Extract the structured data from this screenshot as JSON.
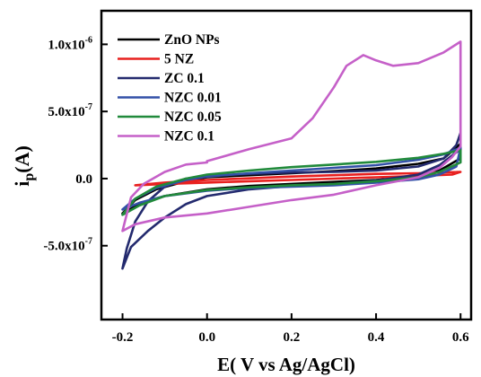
{
  "chart_data": {
    "type": "line",
    "xlabel": "E( V vs Ag/AgCl)",
    "ylabel_main": "i",
    "ylabel_sub": "p",
    "ylabel_tail": "(A)",
    "xlim": [
      -0.25,
      0.625
    ],
    "ylim": [
      -1.05e-06,
      1.25e-06
    ],
    "x_ticks": [
      {
        "value": -0.2,
        "label": "-0.2"
      },
      {
        "value": 0.0,
        "label": "0.0"
      },
      {
        "value": 0.2,
        "label": "0.2"
      },
      {
        "value": 0.4,
        "label": "0.4"
      },
      {
        "value": 0.6,
        "label": "0.6"
      }
    ],
    "y_ticks": [
      {
        "value": -5e-07,
        "base": "-5.0x10",
        "exp": "-7"
      },
      {
        "value": 0,
        "base": "0.0",
        "exp": ""
      },
      {
        "value": 5e-07,
        "base": "5.0x10",
        "exp": "-7"
      },
      {
        "value": 1e-06,
        "base": "1.0x10",
        "exp": "-6"
      }
    ],
    "legend_position": "top-left",
    "series": [
      {
        "name": "ZnO NPs",
        "color": "#000000",
        "points": [
          [
            -0.2,
            -2.6e-07
          ],
          [
            -0.17,
            -1.6e-07
          ],
          [
            -0.12,
            -8e-08
          ],
          [
            -0.05,
            -2e-08
          ],
          [
            0.0,
            1e-08
          ],
          [
            0.1,
            2.5e-08
          ],
          [
            0.2,
            4e-08
          ],
          [
            0.3,
            5.5e-08
          ],
          [
            0.4,
            7.5e-08
          ],
          [
            0.5,
            1.1e-07
          ],
          [
            0.56,
            1.5e-07
          ],
          [
            0.6,
            2.6e-07
          ],
          [
            0.6,
            1.5e-07
          ],
          [
            0.55,
            6e-08
          ],
          [
            0.5,
            2e-08
          ],
          [
            0.4,
            -1e-08
          ],
          [
            0.3,
            -2.5e-08
          ],
          [
            0.2,
            -4e-08
          ],
          [
            0.1,
            -5.5e-08
          ],
          [
            0.0,
            -8e-08
          ],
          [
            -0.1,
            -1.3e-07
          ],
          [
            -0.16,
            -1.9e-07
          ],
          [
            -0.2,
            -2.6e-07
          ]
        ]
      },
      {
        "name": "5 NZ",
        "color": "#e8201f",
        "points": [
          [
            -0.17,
            -5e-08
          ],
          [
            -0.1,
            -3e-08
          ],
          [
            0.0,
            -1e-08
          ],
          [
            0.1,
            2e-09
          ],
          [
            0.2,
            1.5e-08
          ],
          [
            0.3,
            2.5e-08
          ],
          [
            0.4,
            3.5e-08
          ],
          [
            0.5,
            4e-08
          ],
          [
            0.6,
            5e-08
          ],
          [
            0.58,
            3e-08
          ],
          [
            0.5,
            2e-08
          ],
          [
            0.4,
            1e-08
          ],
          [
            0.3,
            0
          ],
          [
            0.2,
            -1e-08
          ],
          [
            0.1,
            -2e-08
          ],
          [
            0.0,
            -3e-08
          ],
          [
            -0.1,
            -4e-08
          ],
          [
            -0.17,
            -5e-08
          ]
        ]
      },
      {
        "name": "ZC 0.1",
        "color": "#232a6e",
        "points": [
          [
            -0.2,
            -6.7e-07
          ],
          [
            -0.19,
            -5.2e-07
          ],
          [
            -0.17,
            -3.2e-07
          ],
          [
            -0.14,
            -1.7e-07
          ],
          [
            -0.1,
            -6e-08
          ],
          [
            -0.05,
            0
          ],
          [
            0.0,
            2e-08
          ],
          [
            0.1,
            3.5e-08
          ],
          [
            0.2,
            4.5e-08
          ],
          [
            0.3,
            5e-08
          ],
          [
            0.4,
            6e-08
          ],
          [
            0.5,
            9e-08
          ],
          [
            0.56,
            1.5e-07
          ],
          [
            0.59,
            2.5e-07
          ],
          [
            0.6,
            3.4e-07
          ],
          [
            0.6,
            2.2e-07
          ],
          [
            0.55,
            1e-07
          ],
          [
            0.5,
            3e-08
          ],
          [
            0.4,
            -1.5e-08
          ],
          [
            0.3,
            -4e-08
          ],
          [
            0.2,
            -5.5e-08
          ],
          [
            0.1,
            -8e-08
          ],
          [
            0.0,
            -1.3e-07
          ],
          [
            -0.05,
            -1.9e-07
          ],
          [
            -0.1,
            -2.9e-07
          ],
          [
            -0.14,
            -3.9e-07
          ],
          [
            -0.18,
            -5.1e-07
          ],
          [
            -0.2,
            -6.7e-07
          ]
        ]
      },
      {
        "name": "NZC 0.01",
        "color": "#3351a8",
        "points": [
          [
            -0.2,
            -2.3e-07
          ],
          [
            -0.17,
            -1.5e-07
          ],
          [
            -0.12,
            -7e-08
          ],
          [
            -0.05,
            -1e-08
          ],
          [
            0.0,
            1.5e-08
          ],
          [
            0.1,
            4e-08
          ],
          [
            0.2,
            6e-08
          ],
          [
            0.3,
            8e-08
          ],
          [
            0.4,
            1e-07
          ],
          [
            0.5,
            1.4e-07
          ],
          [
            0.56,
            1.8e-07
          ],
          [
            0.6,
            2.3e-07
          ],
          [
            0.59,
            9e-08
          ],
          [
            0.55,
            3e-08
          ],
          [
            0.5,
            -5e-09
          ],
          [
            0.4,
            -3e-08
          ],
          [
            0.3,
            -5e-08
          ],
          [
            0.2,
            -6e-08
          ],
          [
            0.1,
            -7e-08
          ],
          [
            0.0,
            -9e-08
          ],
          [
            -0.1,
            -1.3e-07
          ],
          [
            -0.16,
            -1.8e-07
          ],
          [
            -0.2,
            -2.3e-07
          ]
        ]
      },
      {
        "name": "NZC 0.05",
        "color": "#218a3b",
        "points": [
          [
            -0.2,
            -2.7e-07
          ],
          [
            -0.17,
            -1.5e-07
          ],
          [
            -0.12,
            -6e-08
          ],
          [
            -0.05,
            0
          ],
          [
            0.0,
            3e-08
          ],
          [
            0.1,
            6e-08
          ],
          [
            0.2,
            8.5e-08
          ],
          [
            0.3,
            1.05e-07
          ],
          [
            0.4,
            1.25e-07
          ],
          [
            0.5,
            1.55e-07
          ],
          [
            0.56,
            1.85e-07
          ],
          [
            0.6,
            2.1e-07
          ],
          [
            0.6,
            1.2e-07
          ],
          [
            0.55,
            5e-08
          ],
          [
            0.5,
            1e-08
          ],
          [
            0.4,
            -2e-08
          ],
          [
            0.3,
            -4e-08
          ],
          [
            0.2,
            -5e-08
          ],
          [
            0.1,
            -6.5e-08
          ],
          [
            0.0,
            -8.5e-08
          ],
          [
            -0.1,
            -1.3e-07
          ],
          [
            -0.16,
            -2e-07
          ],
          [
            -0.2,
            -2.7e-07
          ]
        ]
      },
      {
        "name": "NZC 0.1",
        "color": "#c560c8",
        "points": [
          [
            0.0,
            1.2e-07
          ],
          [
            -0.05,
            1.05e-07
          ],
          [
            -0.1,
            5e-08
          ],
          [
            -0.15,
            -4e-08
          ],
          [
            -0.18,
            -1.4e-07
          ],
          [
            -0.2,
            -3.9e-07
          ],
          [
            -0.17,
            -3.4e-07
          ],
          [
            -0.1,
            -2.9e-07
          ],
          [
            0.0,
            -2.6e-07
          ],
          [
            0.1,
            -2.1e-07
          ],
          [
            0.2,
            -1.6e-07
          ],
          [
            0.3,
            -1.2e-07
          ],
          [
            0.4,
            -5e-08
          ],
          [
            0.5,
            1e-08
          ],
          [
            0.55,
            8e-08
          ],
          [
            0.58,
            1.6e-07
          ],
          [
            0.6,
            2.4e-07
          ],
          [
            0.6,
            1.02e-06
          ],
          [
            0.56,
            9.4e-07
          ],
          [
            0.5,
            8.6e-07
          ],
          [
            0.44,
            8.4e-07
          ],
          [
            0.4,
            8.8e-07
          ],
          [
            0.37,
            9.2e-07
          ],
          [
            0.33,
            8.4e-07
          ],
          [
            0.3,
            6.8e-07
          ],
          [
            0.25,
            4.5e-07
          ],
          [
            0.2,
            3e-07
          ],
          [
            0.1,
            2.2e-07
          ],
          [
            0.0,
            1.3e-07
          ]
        ]
      }
    ]
  }
}
